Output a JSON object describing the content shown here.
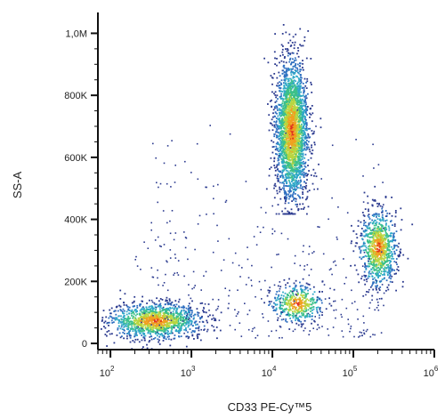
{
  "chart_data": {
    "type": "scatter",
    "style": "density flow-cytometry dot plot",
    "xlabel": "CD33 PE-Cy™5",
    "ylabel": "SS-A",
    "x_scale": "log",
    "xlim": [
      70,
      1000000
    ],
    "ylim": [
      -20000,
      1050000
    ],
    "x_ticks": [
      {
        "value": 100,
        "base": "10",
        "exp": "2"
      },
      {
        "value": 1000,
        "base": "10",
        "exp": "3"
      },
      {
        "value": 10000,
        "base": "10",
        "exp": "4"
      },
      {
        "value": 100000,
        "base": "10",
        "exp": "5"
      },
      {
        "value": 1000000,
        "base": "10",
        "exp": "6"
      }
    ],
    "y_ticks": [
      {
        "value": 0,
        "label": "0"
      },
      {
        "value": 200000,
        "label": "200K"
      },
      {
        "value": 400000,
        "label": "400K"
      },
      {
        "value": 600000,
        "label": "600K"
      },
      {
        "value": 800000,
        "label": "800K"
      },
      {
        "value": 1000000,
        "label": "1,0M"
      }
    ],
    "grid": false,
    "legend": "none",
    "density_colors": [
      "#2b3a8f",
      "#2f6fc0",
      "#2fa8c8",
      "#3cc08a",
      "#b8d640",
      "#f0a020",
      "#e03020"
    ],
    "populations": [
      {
        "x_center": 350,
        "x_log_sd": 0.28,
        "y_center": 75000,
        "y_sd": 28000,
        "peak_x": 420,
        "peak_y": 72000
      },
      {
        "x_center": 17000,
        "x_log_sd": 0.1,
        "y_center": 690000,
        "y_sd": 110000,
        "y_range": [
          420000,
          1030000
        ]
      },
      {
        "x_center": 200000,
        "x_log_sd": 0.11,
        "y_center": 310000,
        "y_sd": 60000
      },
      {
        "x_center": 20000,
        "x_log_sd": 0.16,
        "y_center": 130000,
        "y_sd": 30000
      }
    ]
  }
}
